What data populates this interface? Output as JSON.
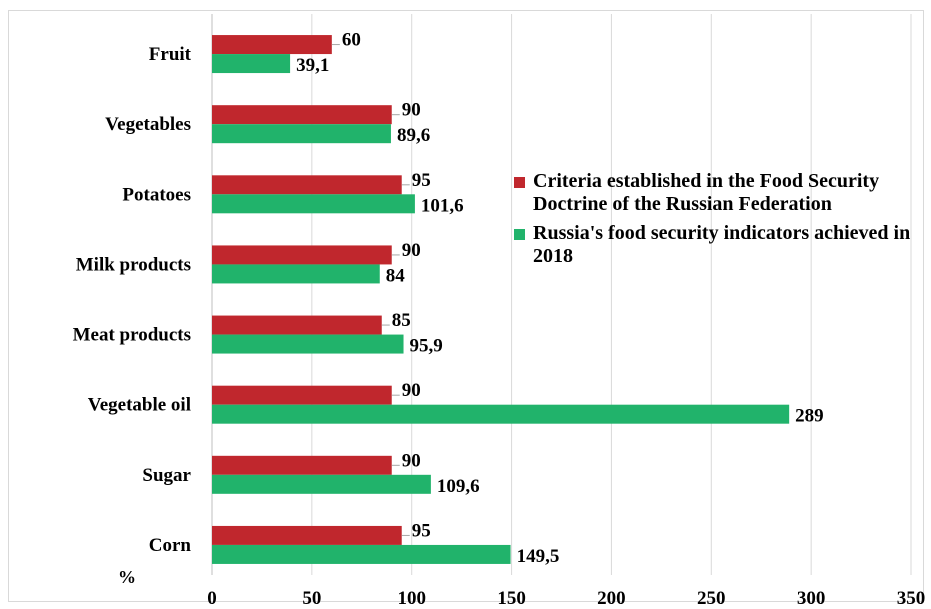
{
  "chart_data": {
    "type": "bar",
    "orientation": "horizontal",
    "unit": "%",
    "categories": [
      "Fruit",
      "Vegetables",
      "Potatoes",
      "Milk products",
      "Meat products",
      "Vegetable oil",
      "Sugar",
      "Corn"
    ],
    "series": [
      {
        "name": "Criteria established in the Food Security Doctrine of the Russian Federation",
        "color": "#c0272d",
        "values": [
          60,
          90,
          95,
          90,
          85,
          90,
          90,
          95
        ],
        "labels": [
          "60",
          "90",
          "95",
          "90",
          "85",
          "90",
          "90",
          "95"
        ]
      },
      {
        "name": "Russia's food security indicators achieved in 2018",
        "color": "#21b36b",
        "values": [
          39.1,
          89.6,
          101.6,
          84,
          95.9,
          289,
          109.6,
          149.5
        ],
        "labels": [
          "39,1",
          "89,6",
          "101,6",
          "84",
          "95,9",
          "289",
          "109,6",
          "149,5"
        ]
      }
    ],
    "xlim": [
      0,
      350
    ],
    "xticks": [
      0,
      50,
      100,
      150,
      200,
      250,
      300,
      350
    ],
    "xtick_labels": [
      "0",
      "50",
      "100",
      "150",
      "200",
      "250",
      "300",
      "350"
    ],
    "grid": "vertical",
    "legend_position": "right"
  }
}
